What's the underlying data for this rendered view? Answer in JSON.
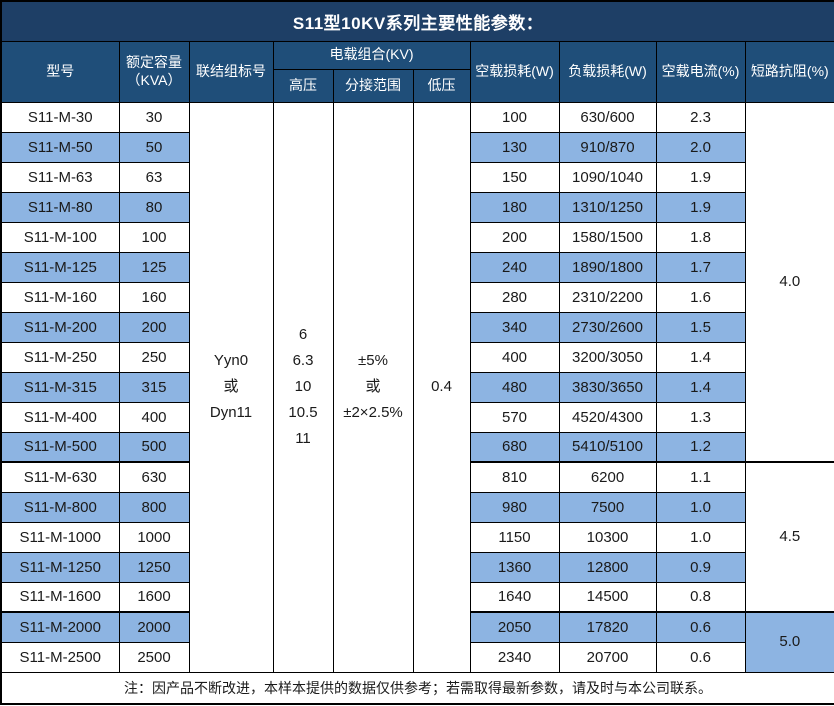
{
  "title": "S11型10KV系列主要性能参数：",
  "note": "注：因产品不断改进，本样本提供的数据仅供参考；若需取得最新参数，请及时与本公司联系。",
  "colors": {
    "title_bg": "#1e3f66",
    "header_bg": "#1f4e79",
    "stripe_bg": "#8db4e2",
    "border": "#000000",
    "text": "#1a1a1a"
  },
  "table": {
    "headers": {
      "model": "型号",
      "capacity": "额定容量\n（KVA）",
      "connection": "联结组标号",
      "voltage_group": "电载组合(KV)",
      "hv": "高压",
      "tap_range": "分接范围",
      "lv": "低压",
      "no_load_loss": "空载损耗(W)",
      "load_loss": "负载损耗(W)",
      "no_load_current": "空载电流(%)",
      "impedance": "短路抗阻(%)"
    },
    "merged": {
      "connection": "Yyn0\n或\nDyn11",
      "hv": "6\n6.3\n10\n10.5\n11",
      "tap_range": "±5%\n或\n±2×2.5%",
      "lv": "0.4"
    },
    "groups": [
      {
        "span": 12,
        "impedance": "4.0"
      },
      {
        "span": 5,
        "impedance": "4.5"
      },
      {
        "span": 2,
        "impedance": "5.0"
      }
    ],
    "rows": [
      {
        "model": "S11-M-30",
        "kva": "30",
        "no_load_loss": "100",
        "load_loss": "630/600",
        "no_load_current": "2.3"
      },
      {
        "model": "S11-M-50",
        "kva": "50",
        "no_load_loss": "130",
        "load_loss": "910/870",
        "no_load_current": "2.0"
      },
      {
        "model": "S11-M-63",
        "kva": "63",
        "no_load_loss": "150",
        "load_loss": "1090/1040",
        "no_load_current": "1.9"
      },
      {
        "model": "S11-M-80",
        "kva": "80",
        "no_load_loss": "180",
        "load_loss": "1310/1250",
        "no_load_current": "1.9"
      },
      {
        "model": "S11-M-100",
        "kva": "100",
        "no_load_loss": "200",
        "load_loss": "1580/1500",
        "no_load_current": "1.8"
      },
      {
        "model": "S11-M-125",
        "kva": "125",
        "no_load_loss": "240",
        "load_loss": "1890/1800",
        "no_load_current": "1.7"
      },
      {
        "model": "S11-M-160",
        "kva": "160",
        "no_load_loss": "280",
        "load_loss": "2310/2200",
        "no_load_current": "1.6"
      },
      {
        "model": "S11-M-200",
        "kva": "200",
        "no_load_loss": "340",
        "load_loss": "2730/2600",
        "no_load_current": "1.5"
      },
      {
        "model": "S11-M-250",
        "kva": "250",
        "no_load_loss": "400",
        "load_loss": "3200/3050",
        "no_load_current": "1.4"
      },
      {
        "model": "S11-M-315",
        "kva": "315",
        "no_load_loss": "480",
        "load_loss": "3830/3650",
        "no_load_current": "1.4"
      },
      {
        "model": "S11-M-400",
        "kva": "400",
        "no_load_loss": "570",
        "load_loss": "4520/4300",
        "no_load_current": "1.3"
      },
      {
        "model": "S11-M-500",
        "kva": "500",
        "no_load_loss": "680",
        "load_loss": "5410/5100",
        "no_load_current": "1.2"
      },
      {
        "model": "S11-M-630",
        "kva": "630",
        "no_load_loss": "810",
        "load_loss": "6200",
        "no_load_current": "1.1"
      },
      {
        "model": "S11-M-800",
        "kva": "800",
        "no_load_loss": "980",
        "load_loss": "7500",
        "no_load_current": "1.0"
      },
      {
        "model": "S11-M-1000",
        "kva": "1000",
        "no_load_loss": "1150",
        "load_loss": "10300",
        "no_load_current": "1.0"
      },
      {
        "model": "S11-M-1250",
        "kva": "1250",
        "no_load_loss": "1360",
        "load_loss": "12800",
        "no_load_current": "0.9"
      },
      {
        "model": "S11-M-1600",
        "kva": "1600",
        "no_load_loss": "1640",
        "load_loss": "14500",
        "no_load_current": "0.8"
      },
      {
        "model": "S11-M-2000",
        "kva": "2000",
        "no_load_loss": "2050",
        "load_loss": "17820",
        "no_load_current": "0.6"
      },
      {
        "model": "S11-M-2500",
        "kva": "2500",
        "no_load_loss": "2340",
        "load_loss": "20700",
        "no_load_current": "0.6"
      }
    ]
  }
}
